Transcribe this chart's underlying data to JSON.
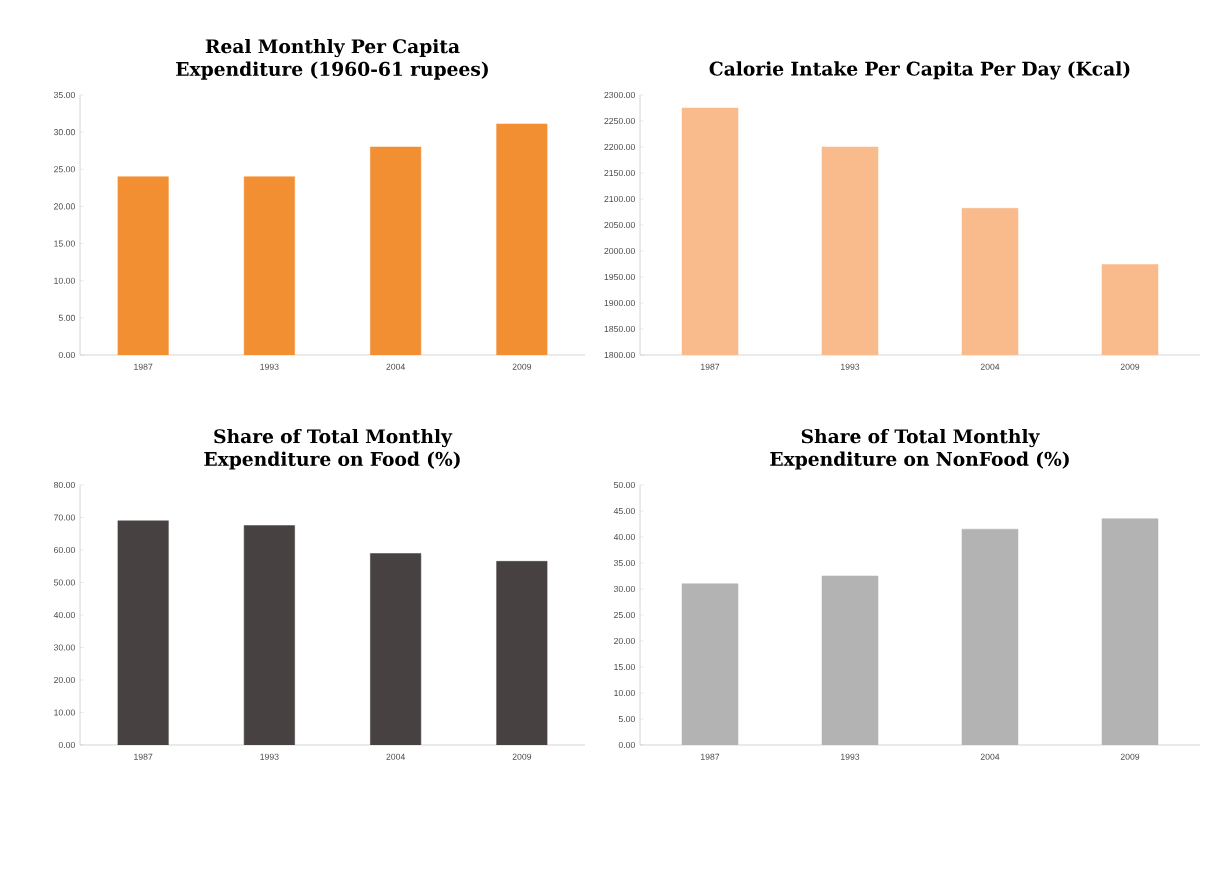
{
  "chart_data": [
    {
      "type": "bar",
      "title": "Real Monthly Per Capita Expenditure (1960-61 rupees)",
      "categories": [
        "1987",
        "1993",
        "2004",
        "2009"
      ],
      "values": [
        24.0,
        24.0,
        28.0,
        31.1
      ],
      "color": "#f38f33",
      "ylim": [
        0,
        35
      ],
      "yticks": [
        {
          "value": 0,
          "label": "0.00"
        },
        {
          "value": 5,
          "label": "5.00"
        },
        {
          "value": 10,
          "label": "10.00"
        },
        {
          "value": 15,
          "label": "15.00"
        },
        {
          "value": 20,
          "label": "20.00"
        },
        {
          "value": 25,
          "label": "25.00"
        },
        {
          "value": 30,
          "label": "30.00"
        },
        {
          "value": 35,
          "label": "35.00"
        }
      ]
    },
    {
      "type": "bar",
      "title": "Calorie Intake Per Capita Per Day (Kcal)",
      "categories": [
        "1987",
        "1993",
        "2004",
        "2009"
      ],
      "values": [
        2275,
        2200,
        2082,
        1974
      ],
      "color": "#f9bb8c",
      "ylim": [
        1800,
        2300
      ],
      "yticks": [
        {
          "value": 1800,
          "label": "1800.00"
        },
        {
          "value": 1850,
          "label": "1850.00"
        },
        {
          "value": 1900,
          "label": "1900.00"
        },
        {
          "value": 1950,
          "label": "1950.00"
        },
        {
          "value": 2000,
          "label": "2000.00"
        },
        {
          "value": 2050,
          "label": "2050.00"
        },
        {
          "value": 2100,
          "label": "2100.00"
        },
        {
          "value": 2150,
          "label": "2150.00"
        },
        {
          "value": 2200,
          "label": "2200.00"
        },
        {
          "value": 2250,
          "label": "2250.00"
        },
        {
          "value": 2300,
          "label": "2300.00"
        }
      ]
    },
    {
      "type": "bar",
      "title": "Share of Total Monthly Expenditure on Food (%)",
      "categories": [
        "1987",
        "1993",
        "2004",
        "2009"
      ],
      "values": [
        69.0,
        67.5,
        58.9,
        56.5
      ],
      "color": "#474241",
      "ylim": [
        0,
        80
      ],
      "yticks": [
        {
          "value": 0,
          "label": "0.00"
        },
        {
          "value": 10,
          "label": "10.00"
        },
        {
          "value": 20,
          "label": "20.00"
        },
        {
          "value": 30,
          "label": "30.00"
        },
        {
          "value": 40,
          "label": "40.00"
        },
        {
          "value": 50,
          "label": "50.00"
        },
        {
          "value": 60,
          "label": "60.00"
        },
        {
          "value": 70,
          "label": "70.00"
        },
        {
          "value": 80,
          "label": "80.00"
        }
      ]
    },
    {
      "type": "bar",
      "title": "Share of Total Monthly Expenditure on NonFood (%)",
      "categories": [
        "1987",
        "1993",
        "2004",
        "2009"
      ],
      "values": [
        31.0,
        32.5,
        41.5,
        43.5
      ],
      "color": "#b3b3b3",
      "ylim": [
        0,
        50
      ],
      "yticks": [
        {
          "value": 0,
          "label": "0.00"
        },
        {
          "value": 5,
          "label": "5.00"
        },
        {
          "value": 10,
          "label": "10.00"
        },
        {
          "value": 15,
          "label": "15.00"
        },
        {
          "value": 20,
          "label": "20.00"
        },
        {
          "value": 25,
          "label": "25.00"
        },
        {
          "value": 30,
          "label": "30.00"
        },
        {
          "value": 35,
          "label": "35.00"
        },
        {
          "value": 40,
          "label": "40.00"
        },
        {
          "value": 45,
          "label": "45.00"
        },
        {
          "value": 50,
          "label": "50.00"
        }
      ]
    }
  ]
}
